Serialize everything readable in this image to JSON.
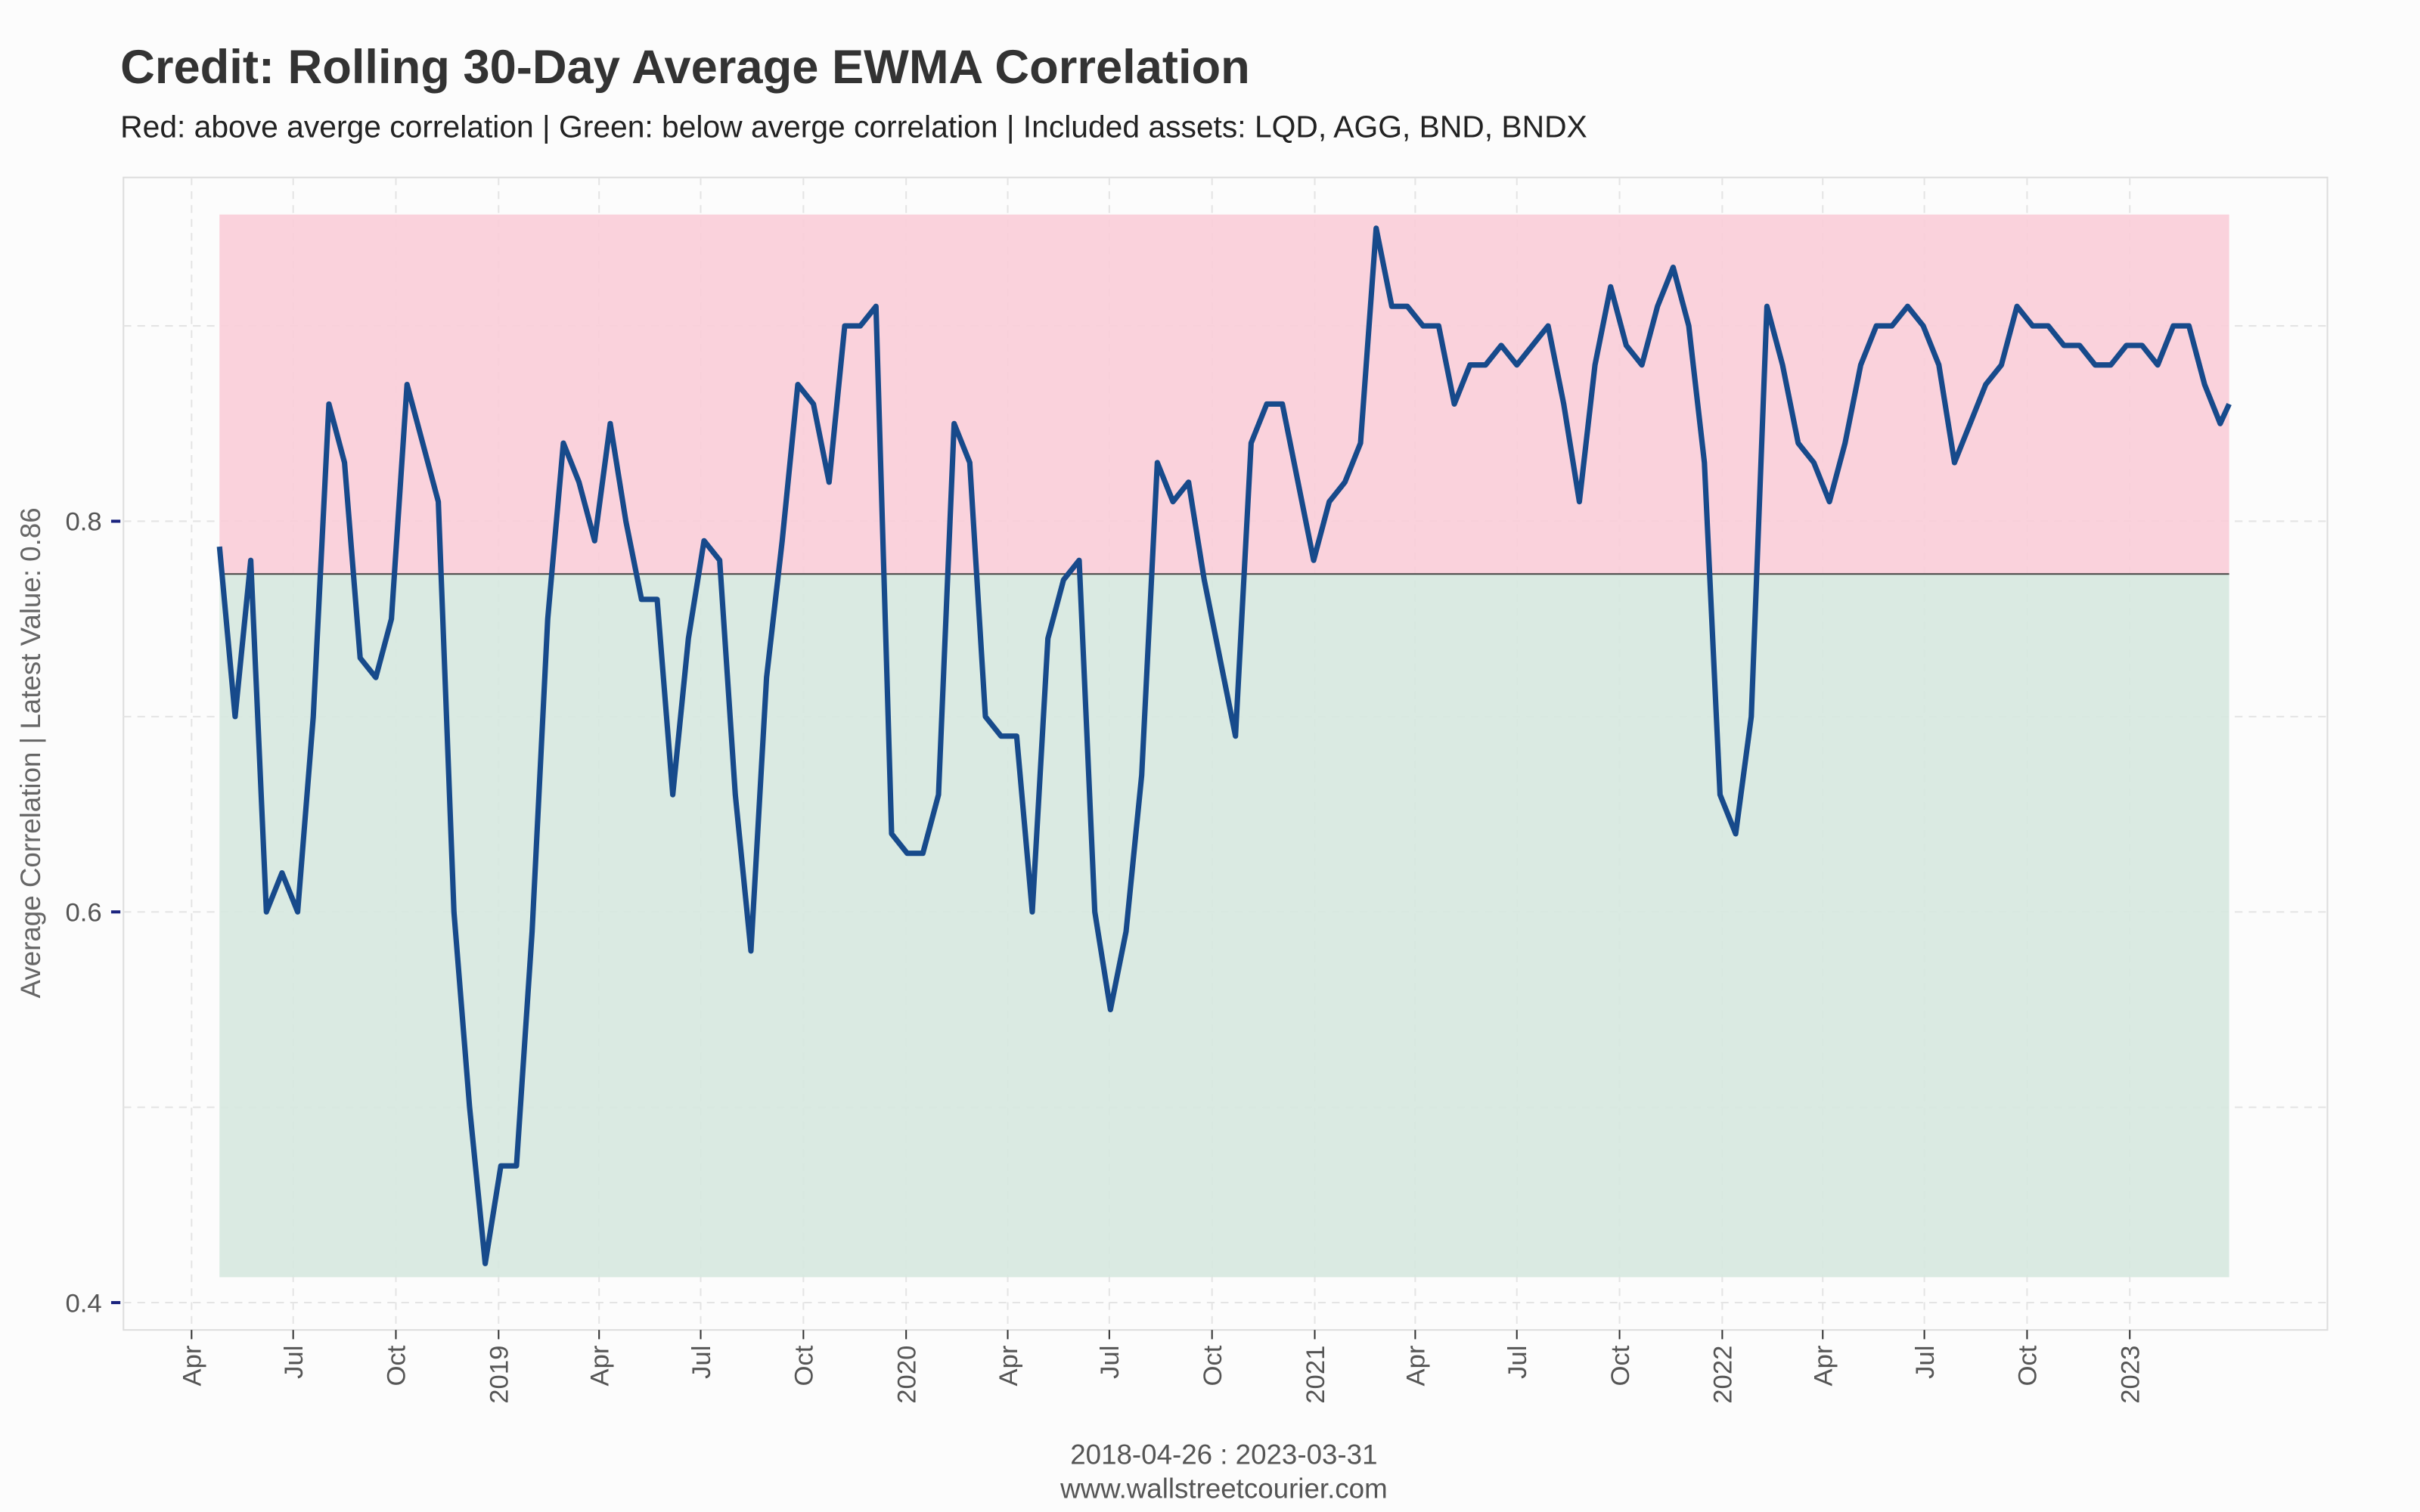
{
  "chart_data": {
    "type": "line",
    "title": "Credit: Rolling 30-Day Average EWMA Correlation",
    "subtitle": "Red: above averge correlation | Green: below averge correlation | Included assets: LQD, AGG, BND, BNDX",
    "y_label": "Average Correlation | Latest Value: 0.86",
    "x_label": "2018-04-26 : 2023-03-31",
    "source": "www.wallstreetcourier.com",
    "x": [
      "2018-04-26",
      "2018-05-10",
      "2018-05-24",
      "2018-06-07",
      "2018-06-21",
      "2018-07-05",
      "2018-07-19",
      "2018-08-02",
      "2018-08-16",
      "2018-08-30",
      "2018-09-13",
      "2018-09-27",
      "2018-10-11",
      "2018-10-25",
      "2018-11-08",
      "2018-11-22",
      "2018-12-06",
      "2018-12-20",
      "2019-01-03",
      "2019-01-17",
      "2019-01-31",
      "2019-02-14",
      "2019-02-28",
      "2019-03-14",
      "2019-03-28",
      "2019-04-11",
      "2019-04-25",
      "2019-05-09",
      "2019-05-23",
      "2019-06-06",
      "2019-06-20",
      "2019-07-04",
      "2019-07-18",
      "2019-08-01",
      "2019-08-15",
      "2019-08-29",
      "2019-09-12",
      "2019-09-26",
      "2019-10-10",
      "2019-10-24",
      "2019-11-07",
      "2019-11-21",
      "2019-12-05",
      "2019-12-19",
      "2020-01-02",
      "2020-01-16",
      "2020-01-30",
      "2020-02-13",
      "2020-02-27",
      "2020-03-12",
      "2020-03-26",
      "2020-04-09",
      "2020-04-23",
      "2020-05-07",
      "2020-05-21",
      "2020-06-04",
      "2020-06-18",
      "2020-07-02",
      "2020-07-16",
      "2020-07-30",
      "2020-08-13",
      "2020-08-27",
      "2020-09-10",
      "2020-09-24",
      "2020-10-08",
      "2020-10-22",
      "2020-11-05",
      "2020-11-19",
      "2020-12-03",
      "2020-12-17",
      "2020-12-31",
      "2021-01-14",
      "2021-01-28",
      "2021-02-11",
      "2021-02-25",
      "2021-03-11",
      "2021-03-25",
      "2021-04-08",
      "2021-04-22",
      "2021-05-06",
      "2021-05-20",
      "2021-06-03",
      "2021-06-17",
      "2021-07-01",
      "2021-07-15",
      "2021-07-29",
      "2021-08-12",
      "2021-08-26",
      "2021-09-09",
      "2021-09-23",
      "2021-10-07",
      "2021-10-21",
      "2021-11-04",
      "2021-11-18",
      "2021-12-02",
      "2021-12-16",
      "2021-12-30",
      "2022-01-13",
      "2022-01-27",
      "2022-02-10",
      "2022-02-24",
      "2022-03-10",
      "2022-03-24",
      "2022-04-07",
      "2022-04-21",
      "2022-05-05",
      "2022-05-19",
      "2022-06-02",
      "2022-06-16",
      "2022-06-30",
      "2022-07-14",
      "2022-07-28",
      "2022-08-11",
      "2022-08-25",
      "2022-09-08",
      "2022-09-22",
      "2022-10-06",
      "2022-10-20",
      "2022-11-03",
      "2022-11-17",
      "2022-12-01",
      "2022-12-15",
      "2022-12-29",
      "2023-01-12",
      "2023-01-26",
      "2023-02-09",
      "2023-02-23",
      "2023-03-09",
      "2023-03-23",
      "2023-03-31"
    ],
    "values": [
      0.787,
      0.7,
      0.78,
      0.6,
      0.62,
      0.6,
      0.7,
      0.86,
      0.83,
      0.73,
      0.72,
      0.75,
      0.87,
      0.84,
      0.81,
      0.6,
      0.5,
      0.42,
      0.47,
      0.47,
      0.59,
      0.75,
      0.84,
      0.82,
      0.79,
      0.85,
      0.8,
      0.76,
      0.76,
      0.66,
      0.74,
      0.79,
      0.78,
      0.66,
      0.58,
      0.72,
      0.79,
      0.87,
      0.86,
      0.82,
      0.9,
      0.9,
      0.91,
      0.64,
      0.63,
      0.63,
      0.66,
      0.85,
      0.83,
      0.7,
      0.69,
      0.69,
      0.6,
      0.74,
      0.77,
      0.78,
      0.6,
      0.55,
      0.59,
      0.67,
      0.83,
      0.81,
      0.82,
      0.77,
      0.73,
      0.69,
      0.84,
      0.86,
      0.86,
      0.82,
      0.78,
      0.81,
      0.82,
      0.84,
      0.95,
      0.91,
      0.91,
      0.9,
      0.9,
      0.86,
      0.88,
      0.88,
      0.89,
      0.88,
      0.89,
      0.9,
      0.86,
      0.81,
      0.88,
      0.92,
      0.89,
      0.88,
      0.91,
      0.93,
      0.9,
      0.83,
      0.66,
      0.64,
      0.7,
      0.91,
      0.88,
      0.84,
      0.83,
      0.81,
      0.84,
      0.88,
      0.9,
      0.9,
      0.91,
      0.9,
      0.88,
      0.83,
      0.85,
      0.87,
      0.88,
      0.91,
      0.9,
      0.9,
      0.89,
      0.89,
      0.88,
      0.88,
      0.89,
      0.89,
      0.88,
      0.9,
      0.9,
      0.87,
      0.85,
      0.86
    ],
    "color": "#174a8b",
    "bands": [
      {
        "from": 0.773,
        "to": 0.957,
        "color": "#f9cdd8"
      },
      {
        "from": 0.413,
        "to": 0.773,
        "color": "#d6e8df"
      }
    ],
    "average_line": 0.773,
    "xlim": [
      "2018-01-30",
      "2023-06-27"
    ],
    "xticks": [
      {
        "value": "2018-04-01",
        "label": "Apr"
      },
      {
        "value": "2018-07-01",
        "label": "Jul"
      },
      {
        "value": "2018-10-01",
        "label": "Oct"
      },
      {
        "value": "2019-01-01",
        "label": "2019"
      },
      {
        "value": "2019-04-01",
        "label": "Apr"
      },
      {
        "value": "2019-07-01",
        "label": "Jul"
      },
      {
        "value": "2019-10-01",
        "label": "Oct"
      },
      {
        "value": "2020-01-01",
        "label": "2020"
      },
      {
        "value": "2020-04-01",
        "label": "Apr"
      },
      {
        "value": "2020-07-01",
        "label": "Jul"
      },
      {
        "value": "2020-10-01",
        "label": "Oct"
      },
      {
        "value": "2021-01-01",
        "label": "2021"
      },
      {
        "value": "2021-04-01",
        "label": "Apr"
      },
      {
        "value": "2021-07-01",
        "label": "Jul"
      },
      {
        "value": "2021-10-01",
        "label": "Oct"
      },
      {
        "value": "2022-01-01",
        "label": "2022"
      },
      {
        "value": "2022-04-01",
        "label": "Apr"
      },
      {
        "value": "2022-07-01",
        "label": "Jul"
      },
      {
        "value": "2022-10-01",
        "label": "Oct"
      },
      {
        "value": "2023-01-01",
        "label": "2023"
      }
    ],
    "ylim": [
      0.386,
      0.976
    ],
    "yticks": [
      0.4,
      0.6,
      0.8
    ],
    "minor_yticks": [
      0.5,
      0.7,
      0.9
    ],
    "grid": true
  }
}
